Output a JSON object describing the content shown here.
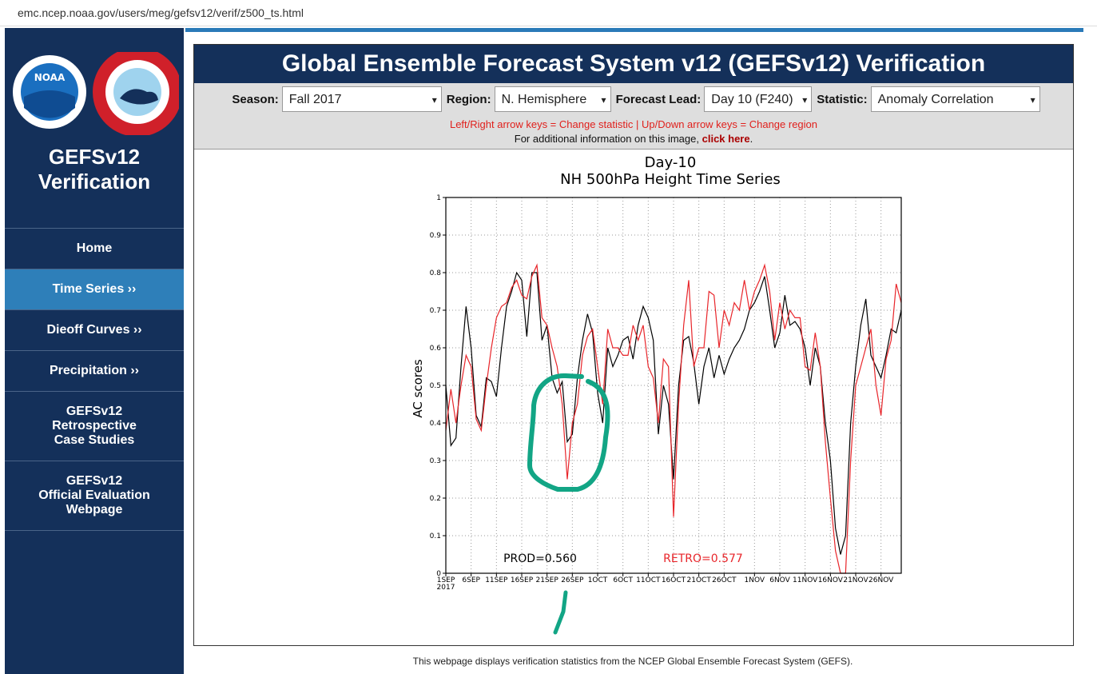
{
  "browser": {
    "url": "emc.ncep.noaa.gov/users/meg/gefsv12/verif/z500_ts.html"
  },
  "sidebar": {
    "logo_text": "NOAA",
    "title": [
      "GEFSv12",
      "Verification"
    ],
    "nav": [
      [
        "Home"
      ],
      [
        "Time Series ››"
      ],
      [
        "Dieoff Curves ››"
      ],
      [
        "Precipitation ››"
      ],
      [
        "GEFSv12",
        "Retrospective",
        "Case Studies"
      ],
      [
        "GEFSv12",
        "Official Evaluation",
        "Webpage"
      ]
    ]
  },
  "header": {
    "title": "Global Ensemble Forecast System v12 (GEFSv12) Verification"
  },
  "controls": [
    {
      "label": "Season:",
      "value": "Fall 2017"
    },
    {
      "label": "Region:",
      "value": "N. Hemisphere"
    },
    {
      "label": "Forecast Lead:",
      "value": "Day 10 (F240)"
    },
    {
      "label": "Statistic:",
      "value": "Anomaly Correlation"
    }
  ],
  "notes": {
    "keys": "Left/Right arrow keys = Change statistic | Up/Down arrow keys = Change region",
    "info": "For additional information on this image,",
    "link": "click here",
    "suffix": "."
  },
  "chart_data": {
    "type": "line",
    "title": "Day-10",
    "subtitle": "NH 500hPa Height Time Series",
    "y_label": "AC scores",
    "year_label": "2017",
    "annotations": [
      "PROD=0.560",
      "RETRO=0.577"
    ],
    "categories": [
      "1SEP",
      null,
      null,
      null,
      null,
      "6SEP",
      null,
      null,
      null,
      null,
      "11SEP",
      null,
      null,
      null,
      null,
      "16SEP",
      null,
      null,
      null,
      null,
      "21SEP",
      null,
      null,
      null,
      null,
      "26SEP",
      null,
      null,
      null,
      null,
      "1OCT",
      null,
      null,
      null,
      null,
      "6OCT",
      null,
      null,
      null,
      null,
      "11OCT",
      null,
      null,
      null,
      null,
      "16OCT",
      null,
      null,
      null,
      null,
      "21OCT",
      null,
      null,
      null,
      null,
      "26OCT",
      null,
      null,
      null,
      null,
      null,
      "1NOV",
      null,
      null,
      null,
      null,
      "6NOV",
      null,
      null,
      null,
      null,
      "11NOV",
      null,
      null,
      null,
      null,
      "16NOV",
      null,
      null,
      null,
      null,
      "21NOV",
      null,
      null,
      null,
      null,
      "26NOV",
      null,
      null,
      null,
      null
    ],
    "series": [
      {
        "name": "PROD",
        "color": "#000000",
        "values": [
          0.5,
          0.34,
          0.36,
          0.55,
          0.71,
          0.6,
          0.42,
          0.39,
          0.52,
          0.51,
          0.47,
          0.6,
          0.71,
          0.75,
          0.8,
          0.78,
          0.63,
          0.8,
          0.8,
          0.62,
          0.66,
          0.52,
          0.48,
          0.51,
          0.35,
          0.37,
          0.52,
          0.62,
          0.69,
          0.64,
          0.48,
          0.4,
          0.6,
          0.55,
          0.58,
          0.62,
          0.63,
          0.57,
          0.66,
          0.71,
          0.68,
          0.62,
          0.37,
          0.5,
          0.45,
          0.25,
          0.5,
          0.62,
          0.63,
          0.56,
          0.45,
          0.55,
          0.6,
          0.52,
          0.58,
          0.53,
          0.57,
          0.6,
          0.62,
          0.65,
          0.7,
          0.72,
          0.75,
          0.79,
          0.7,
          0.6,
          0.64,
          0.74,
          0.66,
          0.67,
          0.65,
          0.6,
          0.5,
          0.6,
          0.55,
          0.4,
          0.3,
          0.12,
          0.05,
          0.1,
          0.4,
          0.55,
          0.66,
          0.73,
          0.58,
          0.55,
          0.52,
          0.58,
          0.65,
          0.64,
          0.7
        ]
      },
      {
        "name": "RETRO",
        "color": "#e8252a",
        "values": [
          0.38,
          0.49,
          0.4,
          0.5,
          0.58,
          0.55,
          0.41,
          0.38,
          0.5,
          0.6,
          0.68,
          0.71,
          0.72,
          0.76,
          0.78,
          0.74,
          0.73,
          0.79,
          0.82,
          0.68,
          0.66,
          0.6,
          0.55,
          0.45,
          0.25,
          0.4,
          0.45,
          0.58,
          0.63,
          0.65,
          0.55,
          0.45,
          0.65,
          0.6,
          0.6,
          0.58,
          0.58,
          0.66,
          0.62,
          0.66,
          0.55,
          0.52,
          0.4,
          0.57,
          0.55,
          0.15,
          0.45,
          0.66,
          0.78,
          0.55,
          0.6,
          0.6,
          0.75,
          0.74,
          0.6,
          0.7,
          0.66,
          0.72,
          0.7,
          0.78,
          0.7,
          0.75,
          0.78,
          0.82,
          0.75,
          0.62,
          0.72,
          0.65,
          0.7,
          0.68,
          0.68,
          0.55,
          0.54,
          0.64,
          0.55,
          0.35,
          0.2,
          0.06,
          0.0,
          0.0,
          0.3,
          0.5,
          0.55,
          0.6,
          0.65,
          0.5,
          0.42,
          0.57,
          0.62,
          0.77,
          0.72
        ]
      }
    ],
    "ylim": [
      0,
      1
    ],
    "yticks": [
      0,
      0.1,
      0.2,
      0.3,
      0.4,
      0.5,
      0.6,
      0.7,
      0.8,
      0.9,
      1
    ],
    "grid": true
  },
  "footer": {
    "text": "This webpage displays verification statistics from the NCEP Global Ensemble Forecast System (GEFS)."
  }
}
